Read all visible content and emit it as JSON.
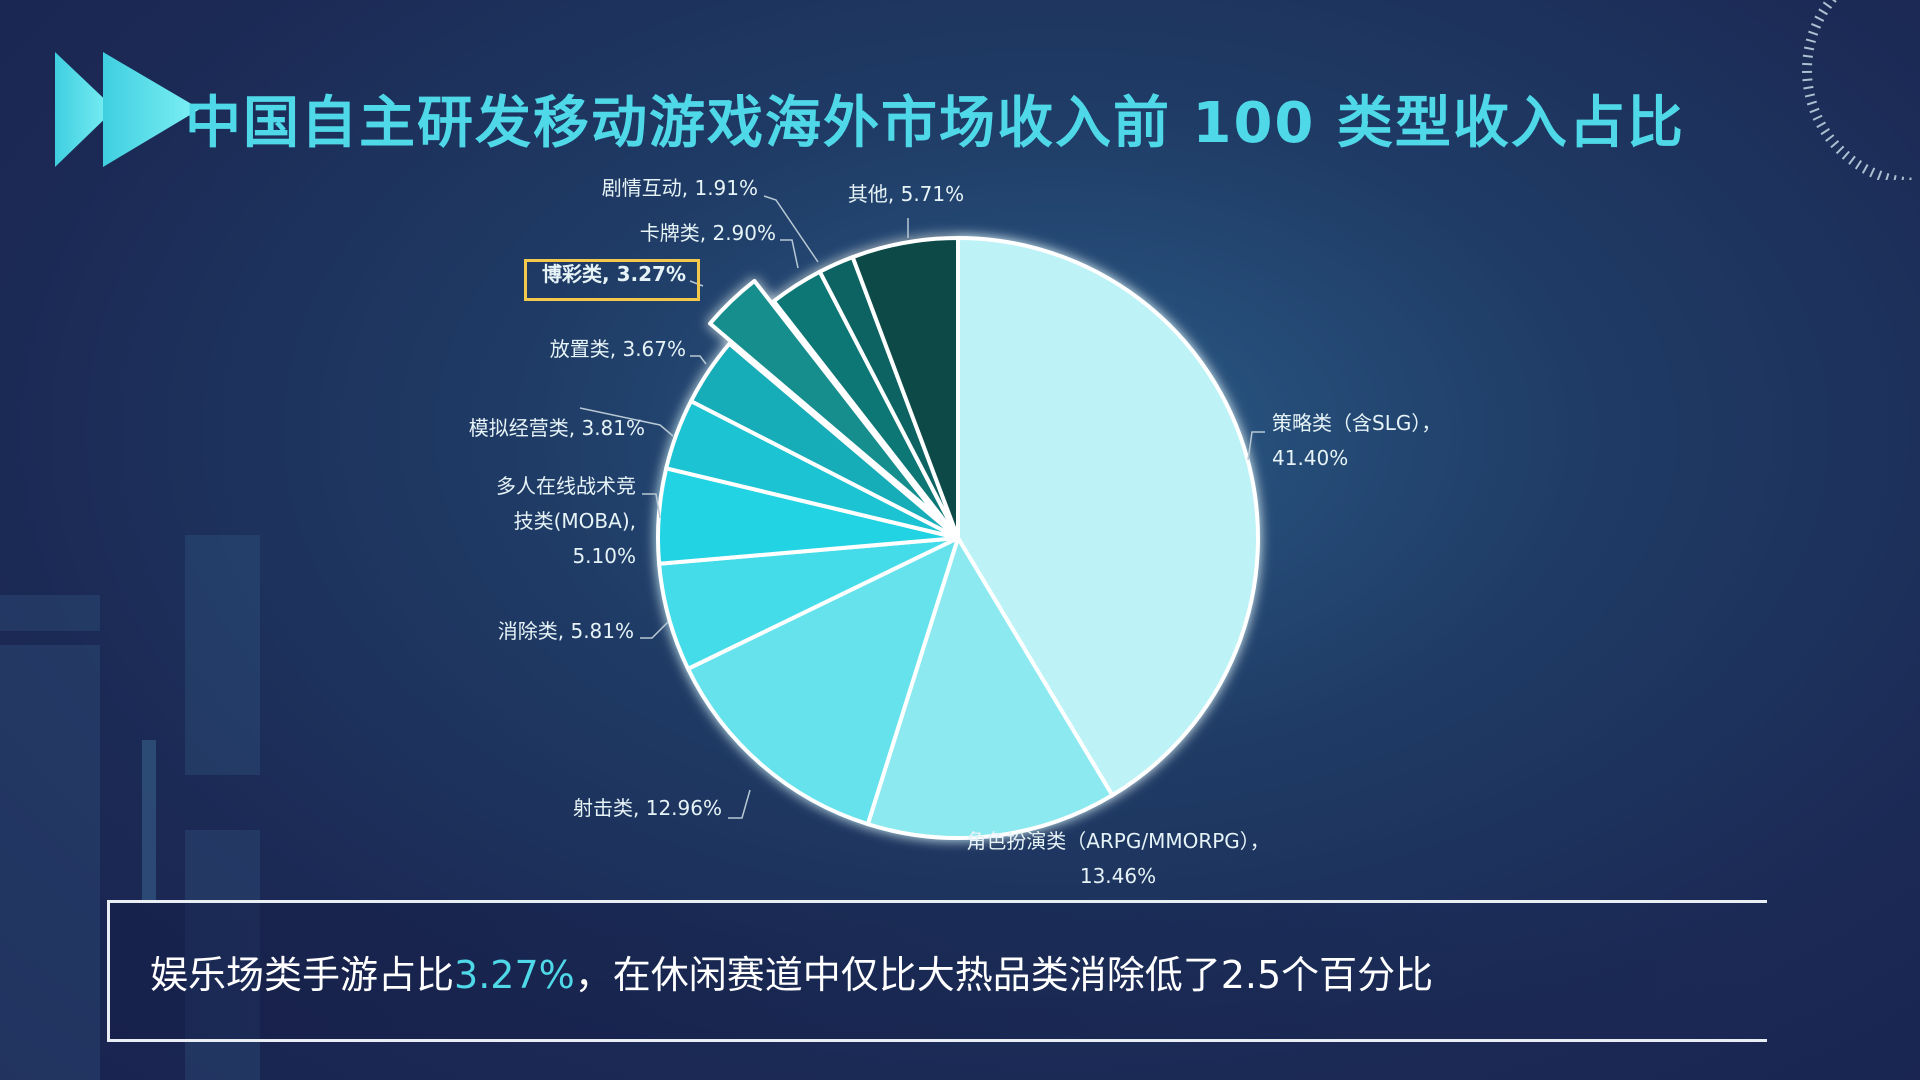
{
  "header": {
    "title": "中国自主研发移动游戏海外市场收入前 100 类型收入占比"
  },
  "summary": {
    "prefix": "娱乐场类手游占比",
    "highlight": "3.27%",
    "suffix": "，在休闲赛道中仅比大热品类消除低了2.5个百分比"
  },
  "colors": {
    "title": "#4fd8e8",
    "accent": "#4fd8e8",
    "highlight_border": "#f3c84b",
    "slice_stroke": "#ffffff"
  },
  "chart_data": {
    "type": "pie",
    "highlighted": "博彩类",
    "slices": [
      {
        "name": "策略类（含SLG）",
        "value": 41.4,
        "label_lines": [
          "策略类（含SLG），",
          "41.40%"
        ],
        "color": "#bdf3f6"
      },
      {
        "name": "角色扮演类（ARPG/MMORPG）",
        "value": 13.46,
        "label_lines": [
          "角色扮演类（ARPG/MMORPG），",
          "13.46%"
        ],
        "color": "#8de9f0"
      },
      {
        "name": "射击类",
        "value": 12.96,
        "label_lines": [
          "射击类, 12.96%"
        ],
        "color": "#66e2ec"
      },
      {
        "name": "消除类",
        "value": 5.81,
        "label_lines": [
          "消除类, 5.81%"
        ],
        "color": "#45dce9"
      },
      {
        "name": "多人在线战术竞技类(MOBA)",
        "value": 5.1,
        "label_lines": [
          "多人在线战术竞",
          "技类(MOBA),",
          "5.10%"
        ],
        "color": "#22d4e3"
      },
      {
        "name": "模拟经营类",
        "value": 3.81,
        "label_lines": [
          "模拟经营类, 3.81%"
        ],
        "color": "#1ec3d2"
      },
      {
        "name": "放置类",
        "value": 3.67,
        "label_lines": [
          "放置类, 3.67%"
        ],
        "color": "#18acb8"
      },
      {
        "name": "博彩类",
        "value": 3.27,
        "label_lines": [
          "博彩类, 3.27%"
        ],
        "color": "#168e8e"
      },
      {
        "name": "卡牌类",
        "value": 2.9,
        "label_lines": [
          "卡牌类, 2.90%"
        ],
        "color": "#0f7774"
      },
      {
        "name": "剧情互动",
        "value": 1.91,
        "label_lines": [
          "剧情互动, 1.91%"
        ],
        "color": "#0d6462"
      },
      {
        "name": "其他",
        "value": 5.71,
        "label_lines": [
          "其他, 5.71%"
        ],
        "color": "#0b4a47"
      }
    ]
  }
}
